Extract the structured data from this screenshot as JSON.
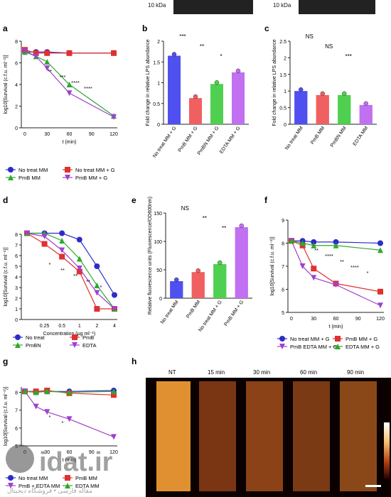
{
  "blots": [
    {
      "label": "10 kDa"
    },
    {
      "label": "10 kDa"
    }
  ],
  "panels": {
    "a": {
      "letter": "a"
    },
    "b": {
      "letter": "b"
    },
    "c": {
      "letter": "c"
    },
    "d": {
      "letter": "d"
    },
    "e": {
      "letter": "e"
    },
    "f": {
      "letter": "f"
    },
    "g": {
      "letter": "g"
    },
    "h": {
      "letter": "h"
    }
  },
  "colors": {
    "blue": "#2c2cc8",
    "red": "#e03030",
    "green": "#2ea82e",
    "purple": "#a040d0"
  },
  "watermark": {
    "text": "idat.ir",
    "subtext": "مقاله فارسی • فروشگاه دیجیتال"
  },
  "scalebar_h": {
    "labels": [
      "NT",
      "15 min",
      "30 min",
      "60 min",
      "90 min"
    ]
  },
  "chart_data": [
    {
      "id": "a",
      "type": "line",
      "xlabel": "t (min)",
      "ylabel": "log10[Survival (c.f.u. ml⁻¹)]",
      "xticks": [
        0,
        30,
        60,
        90,
        120
      ],
      "yticks": [
        0,
        2,
        4,
        6,
        8
      ],
      "xlim": [
        0,
        120
      ],
      "ylim": [
        0,
        8
      ],
      "x": [
        0,
        15,
        30,
        60,
        120
      ],
      "series": [
        {
          "name": "No treat MM",
          "color": "#2c2cc8",
          "marker": "circle",
          "values": [
            7.0,
            7.0,
            7.0,
            6.9,
            6.9
          ]
        },
        {
          "name": "No treat MM + G",
          "color": "#e03030",
          "marker": "square",
          "values": [
            7.2,
            6.9,
            6.9,
            6.9,
            6.9
          ]
        },
        {
          "name": "PmB MM",
          "color": "#2ea82e",
          "marker": "triangle-up",
          "values": [
            7.0,
            6.6,
            6.1,
            4.0,
            1.1
          ]
        },
        {
          "name": "PmB MM + G",
          "color": "#a040d0",
          "marker": "triangle-down",
          "values": [
            7.1,
            6.6,
            5.5,
            3.2,
            1.0
          ]
        }
      ],
      "annotations": [
        "**",
        "***",
        "****",
        "****"
      ]
    },
    {
      "id": "b",
      "type": "bar",
      "ylabel": "Fold change in relative LPS abundance",
      "yticks": [
        0,
        0.5,
        1.0,
        1.5,
        2.0
      ],
      "ylim": [
        0,
        2.0
      ],
      "categories": [
        "No treat MM + G",
        "PmB MM + G",
        "PmBN MM + G",
        "EDTA MM + G"
      ],
      "values": [
        1.65,
        0.63,
        0.97,
        1.25
      ],
      "colors": [
        "#5050f0",
        "#f06060",
        "#50d050",
        "#c070f0"
      ],
      "annotations": [
        "***",
        "**",
        "*"
      ]
    },
    {
      "id": "c",
      "type": "bar",
      "ylabel": "Fold change in relative LPS abundance",
      "yticks": [
        0,
        0.5,
        1.0,
        1.5,
        2.0,
        2.5
      ],
      "ylim": [
        0,
        2.5
      ],
      "categories": [
        "No treat MM",
        "PmB MM",
        "PmBN MM",
        "EDTA MM"
      ],
      "values": [
        1.0,
        0.88,
        0.88,
        0.58
      ],
      "colors": [
        "#5050f0",
        "#f06060",
        "#50d050",
        "#c070f0"
      ],
      "annotations": [
        "NS",
        "NS",
        "***"
      ]
    },
    {
      "id": "d",
      "type": "line",
      "xlabel": "Concentration (μg ml⁻¹)",
      "ylabel": "log10[Survival (c.f.u. ml⁻¹)]",
      "xticklabels": [
        "0.25",
        "0.5",
        "1",
        "2",
        "4"
      ],
      "yticks": [
        0,
        1,
        2,
        3,
        4,
        5,
        6,
        7,
        8
      ],
      "ylim": [
        0,
        8
      ],
      "x": [
        0.125,
        0.25,
        0.5,
        1,
        2,
        4
      ],
      "series": [
        {
          "name": "No treat",
          "color": "#2c2cc8",
          "marker": "circle",
          "values": [
            8.1,
            8.1,
            8.1,
            7.5,
            5.0,
            2.3
          ]
        },
        {
          "name": "PmB",
          "color": "#e03030",
          "marker": "square",
          "values": [
            8.1,
            7.1,
            5.9,
            4.5,
            1.0,
            1.0
          ]
        },
        {
          "name": "PmBN",
          "color": "#2ea82e",
          "marker": "triangle-up",
          "values": [
            8.1,
            8.1,
            7.4,
            5.7,
            3.2,
            1.0
          ]
        },
        {
          "name": "EDTA",
          "color": "#a040d0",
          "marker": "triangle-down",
          "values": [
            8.1,
            7.8,
            6.5,
            4.8,
            2.5,
            1.0
          ]
        }
      ],
      "annotations": [
        "*",
        "**",
        "**",
        "**",
        "*"
      ]
    },
    {
      "id": "e",
      "type": "bar",
      "ylabel": "Relative fluorescence units (Fluorescence/OD600nm)",
      "yticks": [
        0,
        50,
        100,
        150
      ],
      "ylim": [
        0,
        150
      ],
      "categories": [
        "No treat MM",
        "PmB MM",
        "No treat MM + G",
        "PmB MM + G"
      ],
      "values": [
        30,
        46,
        60,
        125
      ],
      "colors": [
        "#5050f0",
        "#f06060",
        "#50d050",
        "#c070f0"
      ],
      "annotations": [
        "NS",
        "**",
        "**"
      ]
    },
    {
      "id": "f",
      "type": "line",
      "xlabel": "t (min)",
      "ylabel": "log10[Survival (c.f.u. ml⁻¹)]",
      "xticks": [
        0,
        30,
        60,
        90,
        120
      ],
      "yticks": [
        5,
        6,
        7,
        8,
        9
      ],
      "xlim": [
        0,
        120
      ],
      "ylim": [
        5,
        9
      ],
      "x": [
        0,
        15,
        30,
        60,
        120
      ],
      "series": [
        {
          "name": "No treat MM + G",
          "color": "#2c2cc8",
          "marker": "circle",
          "values": [
            8.1,
            8.1,
            8.05,
            8.05,
            8.0
          ]
        },
        {
          "name": "PmB MM + G",
          "color": "#e03030",
          "marker": "square",
          "values": [
            8.1,
            7.9,
            6.9,
            6.25,
            5.9
          ]
        },
        {
          "name": "PmB EDTA MM + G",
          "color": "#a040d0",
          "marker": "triangle-down",
          "values": [
            8.1,
            7.0,
            6.5,
            6.2,
            5.3
          ]
        },
        {
          "name": "EDTA MM + G",
          "color": "#2ea82e",
          "marker": "triangle-up",
          "values": [
            8.1,
            8.0,
            7.9,
            7.9,
            7.7
          ]
        }
      ],
      "annotations": [
        "**",
        "****",
        "**",
        "****",
        "*"
      ]
    },
    {
      "id": "g",
      "type": "line",
      "xlabel": "t (min)",
      "ylabel": "log10[Survival (c.f.u. ml⁻¹)]",
      "xticks": [
        0,
        30,
        60,
        90,
        120
      ],
      "yticks": [
        5,
        6,
        7,
        8
      ],
      "xlim": [
        0,
        120
      ],
      "ylim": [
        5,
        8.3
      ],
      "x": [
        0,
        15,
        30,
        60,
        120
      ],
      "series": [
        {
          "name": "No treat MM",
          "color": "#2c2cc8",
          "marker": "circle",
          "values": [
            8.05,
            8.05,
            8.05,
            8.05,
            8.1
          ]
        },
        {
          "name": "PmB MM",
          "color": "#e03030",
          "marker": "square",
          "values": [
            8.05,
            8.05,
            8.1,
            7.95,
            7.85
          ]
        },
        {
          "name": "PmB + EDTA MM",
          "color": "#a040d0",
          "marker": "triangle-down",
          "values": [
            8.05,
            7.2,
            6.9,
            6.5,
            5.5
          ]
        },
        {
          "name": "EDTA MM",
          "color": "#2ea82e",
          "marker": "triangle-up",
          "values": [
            8.05,
            8.0,
            8.05,
            8.0,
            8.05
          ]
        }
      ],
      "annotations": [
        "*",
        "*"
      ]
    }
  ]
}
